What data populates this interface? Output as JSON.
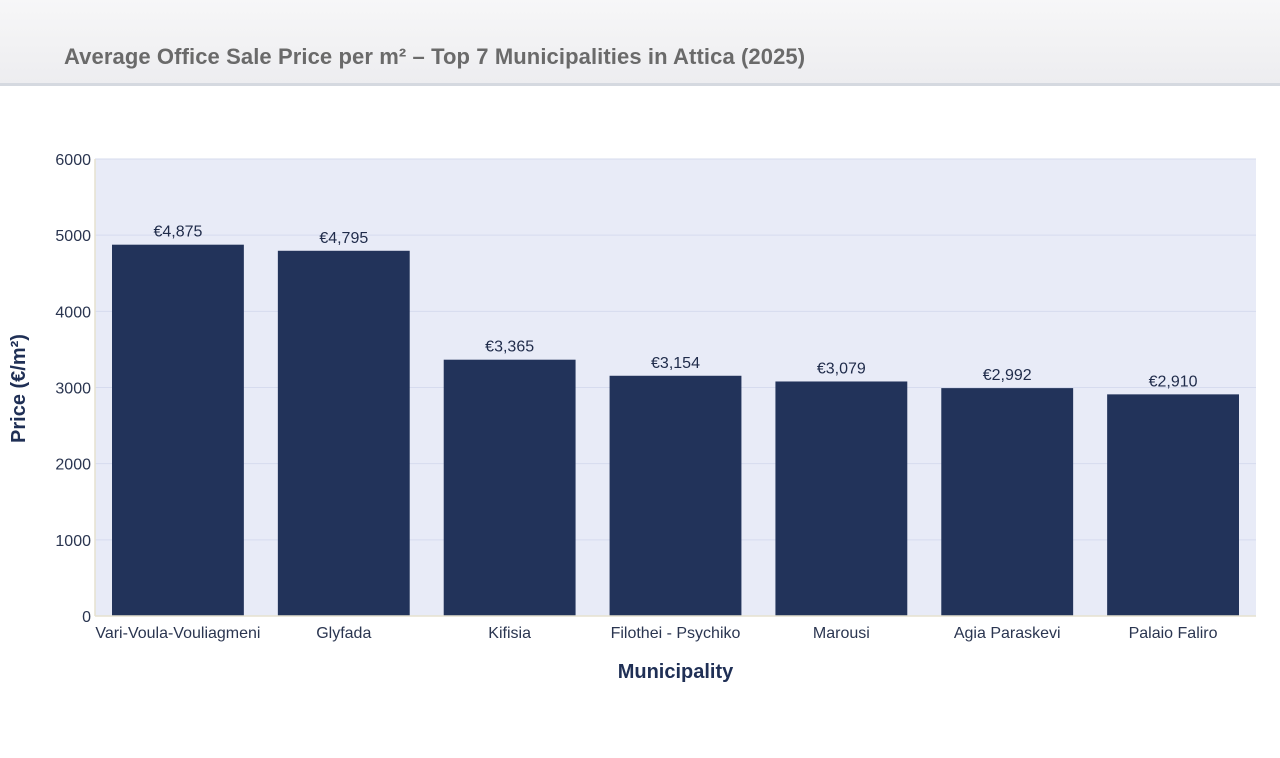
{
  "header": {
    "title": "Average Office Sale Price per m² – Top 7 Municipalities in Attica (2025)"
  },
  "colors": {
    "bar": "#22335a",
    "plot_bg": "#e8ebf7",
    "grid": "#d6dbee",
    "axis_title": "#1f2f55",
    "tick": "#2a3550"
  },
  "chart_data": {
    "type": "bar",
    "title": "Average Office Sale Price per m² – Top 7 Municipalities in Attica (2025)",
    "xlabel": "Municipality",
    "ylabel": "Price (€/m²)",
    "ylim": [
      0,
      6000
    ],
    "yticks": [
      0,
      1000,
      2000,
      3000,
      4000,
      5000,
      6000
    ],
    "grid": true,
    "categories": [
      "Vari-Voula-Vouliagmeni",
      "Glyfada",
      "Kifisia",
      "Filothei - Psychiko",
      "Marousi",
      "Agia Paraskevi",
      "Palaio Faliro"
    ],
    "values": [
      4875,
      4795,
      3365,
      3154,
      3079,
      2992,
      2910
    ],
    "data_labels": [
      "€4,875",
      "€4,795",
      "€3,365",
      "€3,154",
      "€3,079",
      "€2,992",
      "€2,910"
    ]
  }
}
